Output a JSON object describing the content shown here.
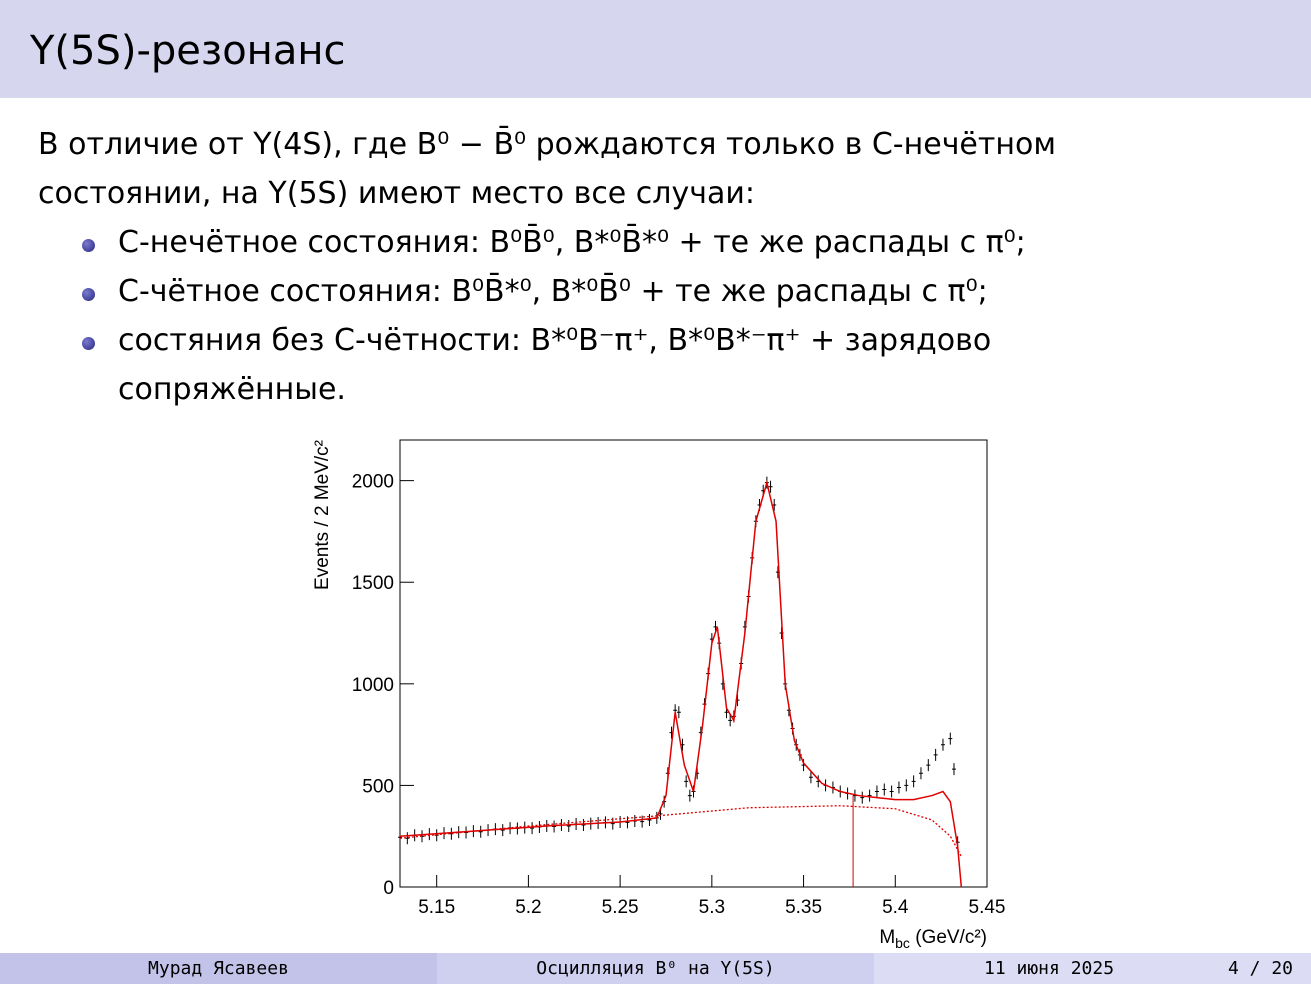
{
  "header": {
    "title": "Υ(5S)-резонанс"
  },
  "intro": [
    "В отличие от Υ(4S), где B⁰ − B̄⁰ рождаются только в C-нечётном",
    "состоянии, на Υ(5S) имеют место все случаи:"
  ],
  "bullets": [
    [
      "C-нечётное состояния: B⁰B̄⁰, B*⁰B̄*⁰ + те же распады с π⁰;"
    ],
    [
      "C-чётное состояния: B⁰B̄*⁰, B*⁰B̄⁰ + те же распады с π⁰;"
    ],
    [
      "состяния без C-чётности: B*⁰B⁻π⁺, B*⁰B*⁻π⁺ + зарядово",
      "сопряжённые."
    ]
  ],
  "chart_data": {
    "type": "scatter",
    "ylabel": "Events / 2 MeV/c²",
    "xlabel": {
      "main": "M",
      "sub": "bc",
      "rest": " (GeV/c²)"
    },
    "xlim": [
      5.13,
      5.45
    ],
    "ylim": [
      0,
      2200
    ],
    "xticks": [
      5.15,
      5.2,
      5.25,
      5.3,
      5.35,
      5.4,
      5.45
    ],
    "yticks": [
      0,
      500,
      1000,
      1500,
      2000
    ],
    "vline": {
      "x": 5.377,
      "y": 450,
      "color": "#d40000"
    },
    "series": [
      {
        "color": "#000000",
        "style": "points",
        "x": [
          5.13,
          5.134,
          5.138,
          5.142,
          5.146,
          5.15,
          5.154,
          5.158,
          5.162,
          5.166,
          5.17,
          5.174,
          5.178,
          5.182,
          5.186,
          5.19,
          5.194,
          5.198,
          5.202,
          5.206,
          5.21,
          5.214,
          5.218,
          5.222,
          5.226,
          5.23,
          5.234,
          5.238,
          5.242,
          5.246,
          5.25,
          5.254,
          5.258,
          5.262,
          5.266,
          5.27,
          5.272,
          5.274,
          5.276,
          5.278,
          5.28,
          5.282,
          5.284,
          5.286,
          5.288,
          5.29,
          5.292,
          5.294,
          5.296,
          5.298,
          5.3,
          5.302,
          5.304,
          5.306,
          5.308,
          5.31,
          5.312,
          5.314,
          5.316,
          5.318,
          5.32,
          5.322,
          5.324,
          5.326,
          5.328,
          5.33,
          5.332,
          5.334,
          5.336,
          5.338,
          5.34,
          5.342,
          5.344,
          5.346,
          5.348,
          5.35,
          5.354,
          5.358,
          5.362,
          5.366,
          5.37,
          5.374,
          5.378,
          5.382,
          5.386,
          5.39,
          5.394,
          5.398,
          5.402,
          5.406,
          5.41,
          5.414,
          5.418,
          5.422,
          5.426,
          5.43,
          5.432,
          5.434
        ],
        "values": [
          245,
          240,
          255,
          250,
          260,
          255,
          265,
          262,
          270,
          268,
          275,
          272,
          280,
          285,
          280,
          290,
          288,
          292,
          290,
          295,
          300,
          298,
          305,
          300,
          310,
          305,
          312,
          315,
          318,
          312,
          320,
          318,
          325,
          322,
          330,
          340,
          360,
          420,
          560,
          760,
          870,
          860,
          700,
          520,
          450,
          470,
          560,
          760,
          900,
          1050,
          1220,
          1280,
          1200,
          1000,
          860,
          820,
          840,
          920,
          1100,
          1280,
          1430,
          1620,
          1800,
          1880,
          1950,
          1990,
          1970,
          1880,
          1550,
          1250,
          1000,
          870,
          780,
          700,
          650,
          600,
          540,
          520,
          500,
          490,
          470,
          460,
          450,
          440,
          450,
          470,
          480,
          470,
          490,
          500,
          520,
          560,
          600,
          650,
          700,
          730,
          580,
          220
        ]
      },
      {
        "color": "#e00000",
        "style": "line",
        "x": [
          5.13,
          5.17,
          5.21,
          5.25,
          5.27,
          5.275,
          5.28,
          5.285,
          5.29,
          5.295,
          5.3,
          5.303,
          5.308,
          5.312,
          5.318,
          5.324,
          5.33,
          5.335,
          5.34,
          5.345,
          5.35,
          5.36,
          5.37,
          5.38,
          5.39,
          5.4,
          5.41,
          5.42,
          5.426,
          5.43,
          5.434,
          5.436
        ],
        "values": [
          250,
          275,
          300,
          320,
          340,
          450,
          860,
          600,
          470,
          800,
          1200,
          1280,
          880,
          820,
          1250,
          1800,
          1990,
          1800,
          1000,
          720,
          610,
          510,
          470,
          450,
          440,
          430,
          430,
          450,
          470,
          420,
          200,
          0
        ]
      },
      {
        "color": "#e00000",
        "style": "dotted",
        "x": [
          5.13,
          5.2,
          5.27,
          5.32,
          5.37,
          5.4,
          5.42,
          5.43,
          5.436
        ],
        "values": [
          240,
          300,
          350,
          390,
          400,
          385,
          330,
          250,
          150
        ]
      }
    ]
  },
  "footer": {
    "author": "Мурад Ясавеев",
    "talk": "Осцилляция B⁰ на Υ(5S)",
    "date": "11 июня 2025",
    "page": "4 / 20"
  }
}
